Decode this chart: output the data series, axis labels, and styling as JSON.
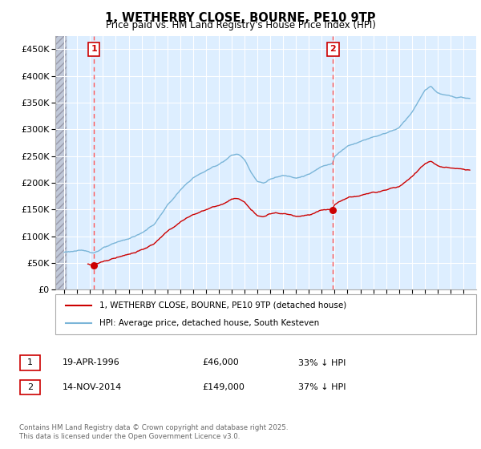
{
  "title": "1, WETHERBY CLOSE, BOURNE, PE10 9TP",
  "subtitle": "Price paid vs. HM Land Registry's House Price Index (HPI)",
  "ylim": [
    0,
    475000
  ],
  "yticks": [
    0,
    50000,
    100000,
    150000,
    200000,
    250000,
    300000,
    350000,
    400000,
    450000
  ],
  "hpi_color": "#7ab5d8",
  "sale_color": "#cc0000",
  "sale1_year": 1996.3,
  "sale1_price": 46000,
  "sale2_year": 2014.87,
  "sale2_price": 149000,
  "legend_label1": "1, WETHERBY CLOSE, BOURNE, PE10 9TP (detached house)",
  "legend_label2": "HPI: Average price, detached house, South Kesteven",
  "table_row1": [
    "1",
    "19-APR-1996",
    "£46,000",
    "33% ↓ HPI"
  ],
  "table_row2": [
    "2",
    "14-NOV-2014",
    "£149,000",
    "37% ↓ HPI"
  ],
  "footnote": "Contains HM Land Registry data © Crown copyright and database right 2025.\nThis data is licensed under the Open Government Licence v3.0.",
  "chart_bg": "#ddeeff",
  "grid_color": "#bbccdd",
  "vline_color": "#ff5555",
  "hatch_color": "#c8c8d8"
}
